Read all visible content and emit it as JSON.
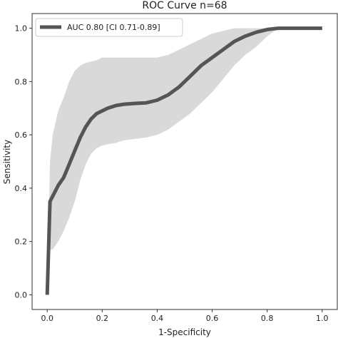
{
  "chart_data": {
    "type": "line",
    "title": "ROC Curve n=68",
    "xlabel": "1-Specificity",
    "ylabel": "Sensitivity",
    "xlim": [
      -0.055,
      1.055
    ],
    "ylim": [
      -0.055,
      1.055
    ],
    "xticks": [
      0.0,
      0.2,
      0.4,
      0.6,
      0.8,
      1.0
    ],
    "yticks": [
      0.0,
      0.2,
      0.4,
      0.6,
      0.8,
      1.0
    ],
    "xtick_labels": [
      "0.0",
      "0.2",
      "0.4",
      "0.6",
      "0.8",
      "1.0"
    ],
    "ytick_labels": [
      "0.0",
      "0.2",
      "0.4",
      "0.6",
      "0.8",
      "1.0"
    ],
    "grid": false,
    "legend_position": "top-left",
    "colors": {
      "line": "#555555",
      "band": "#d9d9d9",
      "axes": "#333333"
    },
    "series": [
      {
        "name": "AUC 0.80 [CI 0.71-0.89]",
        "x": [
          0.0,
          0.01,
          0.02,
          0.04,
          0.06,
          0.08,
          0.1,
          0.12,
          0.14,
          0.16,
          0.18,
          0.2,
          0.22,
          0.25,
          0.28,
          0.32,
          0.36,
          0.4,
          0.44,
          0.48,
          0.52,
          0.56,
          0.6,
          0.64,
          0.68,
          0.72,
          0.76,
          0.8,
          0.84,
          0.88,
          1.0
        ],
        "y": [
          0.0,
          0.35,
          0.37,
          0.41,
          0.44,
          0.49,
          0.54,
          0.59,
          0.63,
          0.66,
          0.68,
          0.69,
          0.7,
          0.71,
          0.715,
          0.718,
          0.72,
          0.73,
          0.75,
          0.78,
          0.82,
          0.86,
          0.89,
          0.92,
          0.95,
          0.97,
          0.985,
          0.995,
          1.0,
          1.0,
          1.0
        ]
      }
    ],
    "ci_band": {
      "x": [
        0.0,
        0.01,
        0.02,
        0.04,
        0.06,
        0.08,
        0.1,
        0.12,
        0.14,
        0.16,
        0.18,
        0.2,
        0.22,
        0.25,
        0.28,
        0.32,
        0.36,
        0.4,
        0.44,
        0.48,
        0.52,
        0.56,
        0.6,
        0.64,
        0.68,
        0.72,
        0.76,
        0.8,
        0.84,
        0.88,
        1.0
      ],
      "lower": [
        0.0,
        0.17,
        0.17,
        0.2,
        0.24,
        0.29,
        0.35,
        0.43,
        0.49,
        0.53,
        0.55,
        0.56,
        0.565,
        0.57,
        0.58,
        0.585,
        0.59,
        0.6,
        0.62,
        0.65,
        0.68,
        0.72,
        0.76,
        0.81,
        0.86,
        0.9,
        0.93,
        0.97,
        1.0,
        1.0,
        1.0
      ],
      "upper": [
        0.0,
        0.5,
        0.6,
        0.69,
        0.74,
        0.8,
        0.84,
        0.86,
        0.87,
        0.875,
        0.88,
        0.89,
        0.89,
        0.89,
        0.89,
        0.89,
        0.89,
        0.89,
        0.9,
        0.92,
        0.94,
        0.96,
        0.98,
        0.99,
        1.0,
        1.0,
        1.0,
        1.0,
        1.0,
        1.0,
        1.0
      ]
    }
  }
}
